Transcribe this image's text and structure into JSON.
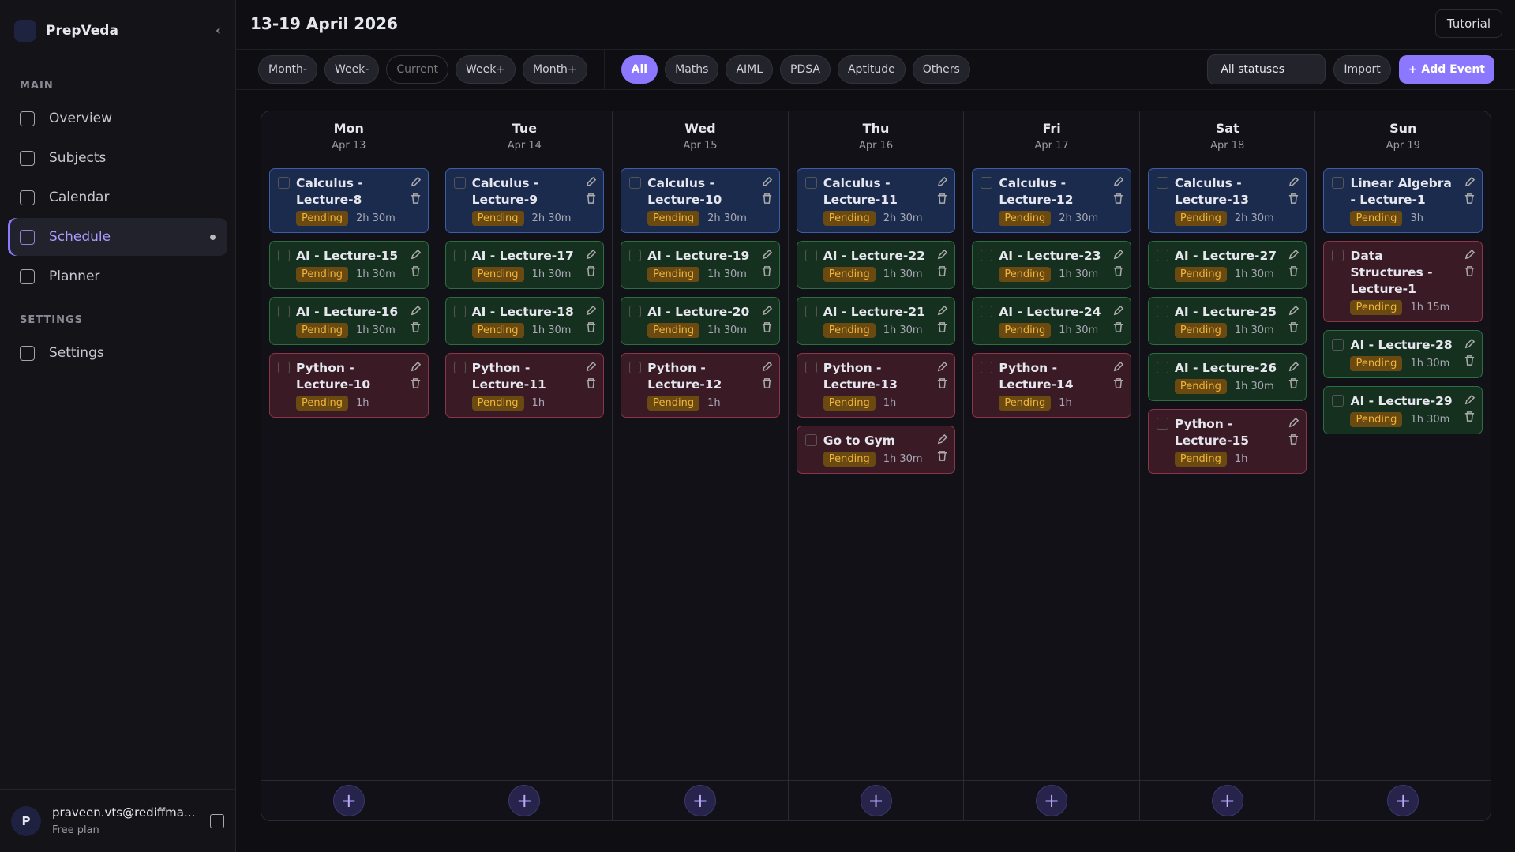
{
  "sidebar": {
    "brand": "PrepVeda",
    "sections": [
      {
        "title": "MAIN",
        "items": [
          "Overview",
          "Subjects",
          "Calendar",
          "Schedule",
          "Planner"
        ]
      },
      {
        "title": "SETTINGS",
        "items": [
          "Settings"
        ]
      }
    ],
    "active": "Schedule",
    "user": {
      "initial": "P",
      "email": "praveen.vts@rediffma...",
      "plan": "Free plan"
    }
  },
  "header": {
    "title": "13-19 April 2026",
    "tutorial": "Tutorial"
  },
  "toolbar": {
    "nav": [
      "Month-",
      "Week-",
      "Current",
      "Week+",
      "Month+"
    ],
    "filters": [
      "All",
      "Maths",
      "AIML",
      "PDSA",
      "Aptitude",
      "Others"
    ],
    "active_filter": "All",
    "status": "All statuses",
    "import": "Import",
    "add": "+ Add Event"
  },
  "days": [
    {
      "name": "Mon",
      "date": "Apr 13",
      "events": [
        {
          "title": "Calculus - Lecture-8",
          "status": "Pending",
          "duration": "2h 30m",
          "color": "blue"
        },
        {
          "title": "AI - Lecture-15",
          "status": "Pending",
          "duration": "1h 30m",
          "color": "green"
        },
        {
          "title": "AI - Lecture-16",
          "status": "Pending",
          "duration": "1h 30m",
          "color": "green"
        },
        {
          "title": "Python - Lecture-10",
          "status": "Pending",
          "duration": "1h",
          "color": "red"
        }
      ]
    },
    {
      "name": "Tue",
      "date": "Apr 14",
      "events": [
        {
          "title": "Calculus - Lecture-9",
          "status": "Pending",
          "duration": "2h 30m",
          "color": "blue"
        },
        {
          "title": "AI - Lecture-17",
          "status": "Pending",
          "duration": "1h 30m",
          "color": "green"
        },
        {
          "title": "AI - Lecture-18",
          "status": "Pending",
          "duration": "1h 30m",
          "color": "green"
        },
        {
          "title": "Python - Lecture-11",
          "status": "Pending",
          "duration": "1h",
          "color": "red"
        }
      ]
    },
    {
      "name": "Wed",
      "date": "Apr 15",
      "events": [
        {
          "title": "Calculus - Lecture-10",
          "status": "Pending",
          "duration": "2h 30m",
          "color": "blue"
        },
        {
          "title": "AI - Lecture-19",
          "status": "Pending",
          "duration": "1h 30m",
          "color": "green"
        },
        {
          "title": "AI - Lecture-20",
          "status": "Pending",
          "duration": "1h 30m",
          "color": "green"
        },
        {
          "title": "Python - Lecture-12",
          "status": "Pending",
          "duration": "1h",
          "color": "red"
        }
      ]
    },
    {
      "name": "Thu",
      "date": "Apr 16",
      "events": [
        {
          "title": "Calculus - Lecture-11",
          "status": "Pending",
          "duration": "2h 30m",
          "color": "blue"
        },
        {
          "title": "AI - Lecture-22",
          "status": "Pending",
          "duration": "1h 30m",
          "color": "green"
        },
        {
          "title": "AI - Lecture-21",
          "status": "Pending",
          "duration": "1h 30m",
          "color": "green"
        },
        {
          "title": "Python - Lecture-13",
          "status": "Pending",
          "duration": "1h",
          "color": "red"
        },
        {
          "title": "Go to Gym",
          "status": "Pending",
          "duration": "1h 30m",
          "color": "red"
        }
      ]
    },
    {
      "name": "Fri",
      "date": "Apr 17",
      "events": [
        {
          "title": "Calculus - Lecture-12",
          "status": "Pending",
          "duration": "2h 30m",
          "color": "blue"
        },
        {
          "title": "AI - Lecture-23",
          "status": "Pending",
          "duration": "1h 30m",
          "color": "green"
        },
        {
          "title": "AI - Lecture-24",
          "status": "Pending",
          "duration": "1h 30m",
          "color": "green"
        },
        {
          "title": "Python - Lecture-14",
          "status": "Pending",
          "duration": "1h",
          "color": "red"
        }
      ]
    },
    {
      "name": "Sat",
      "date": "Apr 18",
      "events": [
        {
          "title": "Calculus - Lecture-13",
          "status": "Pending",
          "duration": "2h 30m",
          "color": "blue"
        },
        {
          "title": "AI - Lecture-27",
          "status": "Pending",
          "duration": "1h 30m",
          "color": "green"
        },
        {
          "title": "AI - Lecture-25",
          "status": "Pending",
          "duration": "1h 30m",
          "color": "green"
        },
        {
          "title": "AI - Lecture-26",
          "status": "Pending",
          "duration": "1h 30m",
          "color": "green"
        },
        {
          "title": "Python - Lecture-15",
          "status": "Pending",
          "duration": "1h",
          "color": "red"
        }
      ]
    },
    {
      "name": "Sun",
      "date": "Apr 19",
      "events": [
        {
          "title": "Linear Algebra - Lecture-1",
          "status": "Pending",
          "duration": "3h",
          "color": "blue"
        },
        {
          "title": "Data Structures - Lecture-1",
          "status": "Pending",
          "duration": "1h 15m",
          "color": "red"
        },
        {
          "title": "AI - Lecture-28",
          "status": "Pending",
          "duration": "1h 30m",
          "color": "green"
        },
        {
          "title": "AI - Lecture-29",
          "status": "Pending",
          "duration": "1h 30m",
          "color": "green"
        }
      ]
    }
  ]
}
